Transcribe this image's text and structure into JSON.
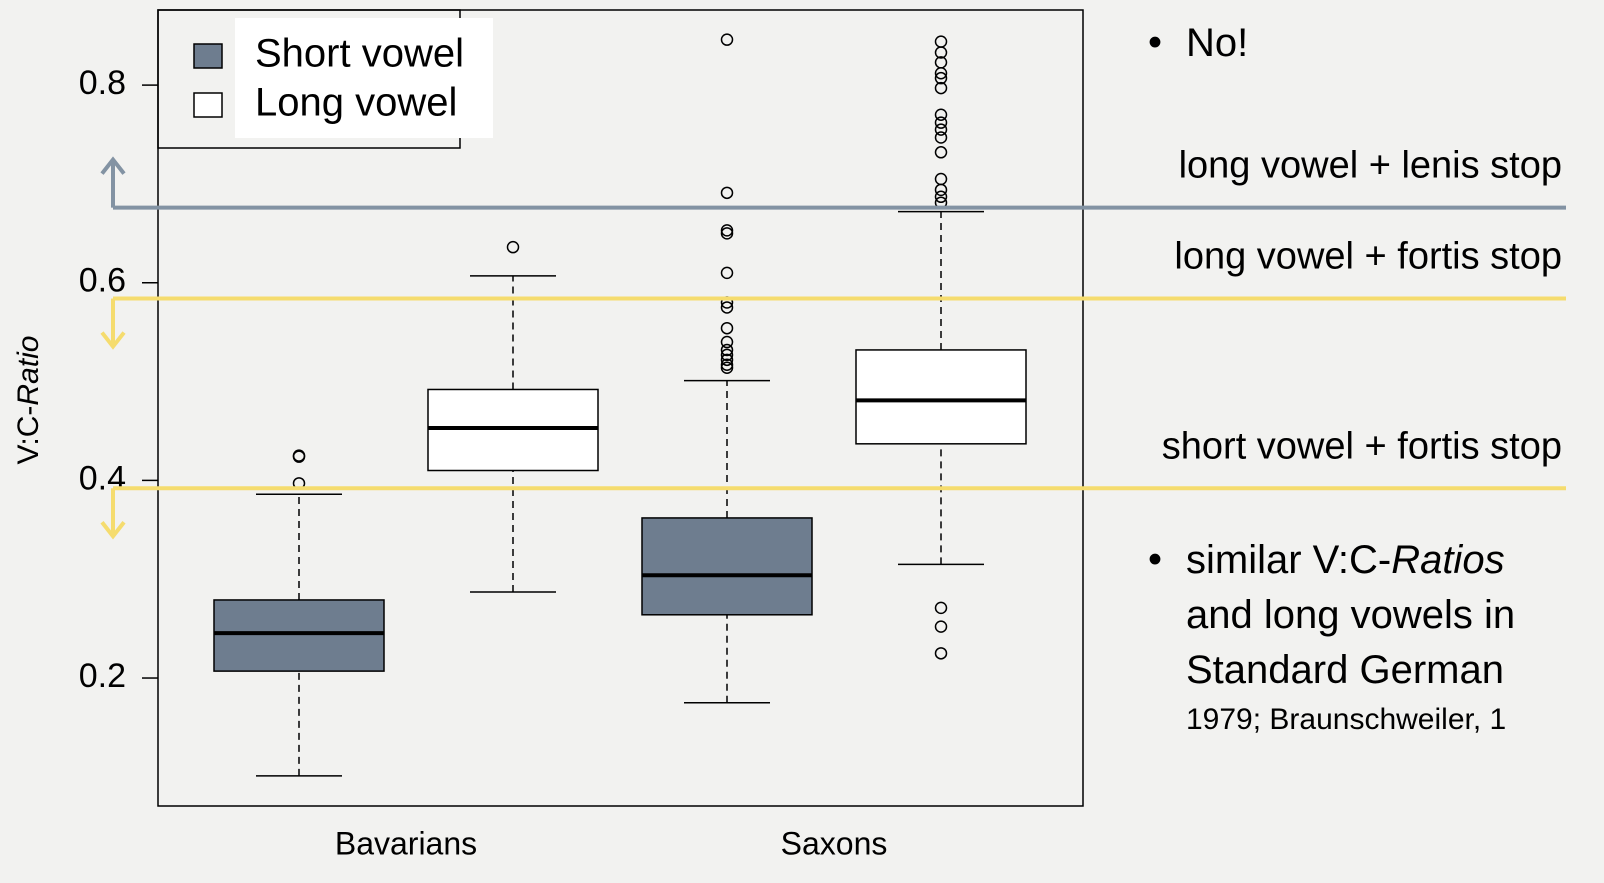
{
  "chart_data": {
    "type": "boxplot",
    "ylabel": [
      "V:C-",
      "Ratio"
    ],
    "categories": [
      "Bavarians",
      "Saxons"
    ],
    "ylim": [
      0.0705,
      0.876
    ],
    "yticks": [
      0.2,
      0.4,
      0.6,
      0.8
    ],
    "series": [
      {
        "name": "Short vowel",
        "color": "#6e7d8f",
        "values": [
          {
            "low": 0.101,
            "q1": 0.207,
            "median": 0.2455,
            "q3": 0.279,
            "high": 0.386,
            "outliers": [
              0.425,
              0.424,
              0.397
            ]
          },
          {
            "low": 0.175,
            "q1": 0.264,
            "median": 0.304,
            "q3": 0.362,
            "high": 0.501,
            "outliers": [
              0.846,
              0.691,
              0.653,
              0.65,
              0.61,
              0.58,
              0.575,
              0.554,
              0.54,
              0.532,
              0.527,
              0.522,
              0.517,
              0.514
            ]
          }
        ]
      },
      {
        "name": "Long vowel",
        "color": "#ffffff",
        "values": [
          {
            "low": 0.287,
            "q1": 0.41,
            "median": 0.453,
            "q3": 0.492,
            "high": 0.607,
            "outliers": [
              0.636
            ]
          },
          {
            "low": 0.315,
            "q1": 0.437,
            "median": 0.481,
            "q3": 0.532,
            "high": 0.672,
            "outliers": [
              0.844,
              0.833,
              0.823,
              0.812,
              0.807,
              0.797,
              0.77,
              0.762,
              0.755,
              0.747,
              0.732,
              0.705,
              0.694,
              0.687,
              0.681,
              0.271,
              0.252,
              0.225
            ]
          }
        ]
      }
    ],
    "reference_lines": [
      {
        "value": 0.676,
        "label": "long vowel + lenis stop",
        "color": "#8393a3",
        "text_color": "#8393a3",
        "direction": "up"
      },
      {
        "value": 0.584,
        "label": "long vowel + fortis stop",
        "color": "#f5dc6e",
        "text_color": "#1e8a1e",
        "direction": "down"
      },
      {
        "value": 0.392,
        "label": "short vowel + fortis stop",
        "color": "#f5dc6e",
        "text_color": "#1e8a1e",
        "direction": "down"
      }
    ]
  },
  "bullets": [
    {
      "lines": [
        [
          "No!"
        ]
      ]
    },
    {
      "lines": [
        [
          "similar V:C-",
          "Ratios"
        ],
        [
          "and long vowels in"
        ],
        [
          "Standard German"
        ]
      ],
      "note": "1979; Braunschweiler, 1"
    }
  ]
}
